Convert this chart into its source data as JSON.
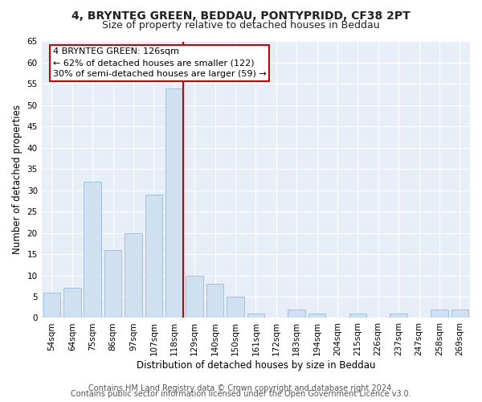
{
  "title": "4, BRYNTEG GREEN, BEDDAU, PONTYPRIDD, CF38 2PT",
  "subtitle": "Size of property relative to detached houses in Beddau",
  "xlabel": "Distribution of detached houses by size in Beddau",
  "ylabel": "Number of detached properties",
  "bar_labels": [
    "54sqm",
    "64sqm",
    "75sqm",
    "86sqm",
    "97sqm",
    "107sqm",
    "118sqm",
    "129sqm",
    "140sqm",
    "150sqm",
    "161sqm",
    "172sqm",
    "183sqm",
    "194sqm",
    "204sqm",
    "215sqm",
    "226sqm",
    "237sqm",
    "247sqm",
    "258sqm",
    "269sqm"
  ],
  "bar_values": [
    6,
    7,
    32,
    16,
    20,
    29,
    54,
    10,
    8,
    5,
    1,
    0,
    2,
    1,
    0,
    1,
    0,
    1,
    0,
    2,
    2
  ],
  "bar_color": "#cfe0f0",
  "bar_edge_color": "#9abbd4",
  "vline_color": "#cc0000",
  "annotation_title": "4 BRYNTEG GREEN: 126sqm",
  "annotation_line1": "← 62% of detached houses are smaller (122)",
  "annotation_line2": "30% of semi-detached houses are larger (59) →",
  "annotation_box_color": "#ffffff",
  "annotation_box_edge": "#cc0000",
  "ylim": [
    0,
    65
  ],
  "yticks": [
    0,
    5,
    10,
    15,
    20,
    25,
    30,
    35,
    40,
    45,
    50,
    55,
    60,
    65
  ],
  "footer1": "Contains HM Land Registry data © Crown copyright and database right 2024.",
  "footer2": "Contains public sector information licensed under the Open Government Licence v3.0.",
  "bg_color": "#ffffff",
  "plot_bg_color": "#e8eef8",
  "title_fontsize": 10,
  "subtitle_fontsize": 9,
  "axis_label_fontsize": 8.5,
  "tick_fontsize": 7.5,
  "annotation_fontsize": 8,
  "footer_fontsize": 7
}
